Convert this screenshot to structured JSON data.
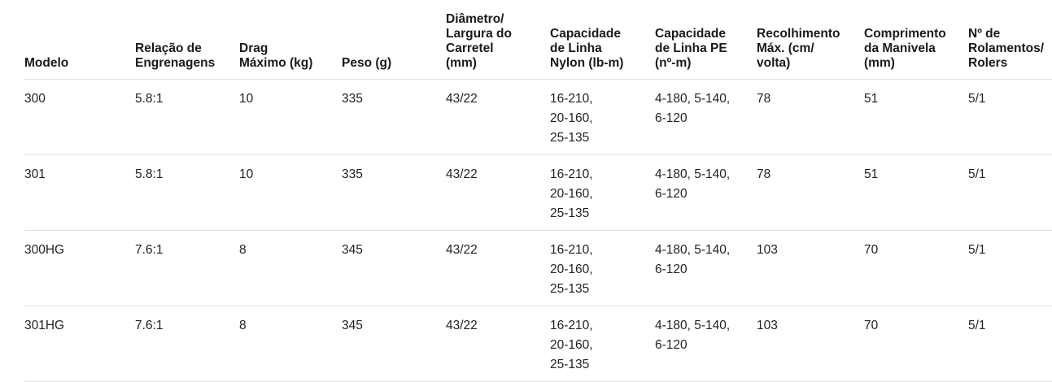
{
  "colors": {
    "background": "#ffffff",
    "header_text": "#1a1a1a",
    "body_text": "#222222",
    "divider": "#e1e1e1"
  },
  "table": {
    "columns": [
      {
        "id": "modelo",
        "label": "Modelo"
      },
      {
        "id": "relacao-engrenagens",
        "label": "Relação de\nEngrenagens"
      },
      {
        "id": "drag-maximo",
        "label": "Drag\nMáximo (kg)"
      },
      {
        "id": "peso",
        "label": "Peso (g)"
      },
      {
        "id": "diametro-largura-carretel",
        "label": "Diâmetro/\nLargura do\nCarretel\n(mm)"
      },
      {
        "id": "capacidade-linha-nylon",
        "label": "Capacidade\nde Linha\nNylon (lb-m)"
      },
      {
        "id": "capacidade-linha-pe",
        "label": "Capacidade\nde Linha PE\n(nº-m)"
      },
      {
        "id": "recolhimento-max",
        "label": "Recolhimento\nMáx. (cm/\nvolta)"
      },
      {
        "id": "comprimento-manivela",
        "label": "Comprimento\nda Manivela\n(mm)"
      },
      {
        "id": "rolamentos-rolers",
        "label": "Nº de\nRolamentos/\nRolers"
      }
    ],
    "rows": [
      {
        "cells": [
          "300",
          "5.8:1",
          "10",
          "335",
          "43/22",
          "16-210,\n20-160,\n25-135",
          "4-180, 5-140,\n6-120",
          "78",
          "51",
          "5/1"
        ]
      },
      {
        "cells": [
          "301",
          "5.8:1",
          "10",
          "335",
          "43/22",
          "16-210,\n20-160,\n25-135",
          "4-180, 5-140,\n6-120",
          "78",
          "51",
          "5/1"
        ]
      },
      {
        "cells": [
          "300HG",
          "7.6:1",
          "8",
          "345",
          "43/22",
          "16-210,\n20-160,\n25-135",
          "4-180, 5-140,\n6-120",
          "103",
          "70",
          "5/1"
        ]
      },
      {
        "cells": [
          "301HG",
          "7.6:1",
          "8",
          "345",
          "43/22",
          "16-210,\n20-160,\n25-135",
          "4-180, 5-140,\n6-120",
          "103",
          "70",
          "5/1"
        ]
      }
    ]
  }
}
